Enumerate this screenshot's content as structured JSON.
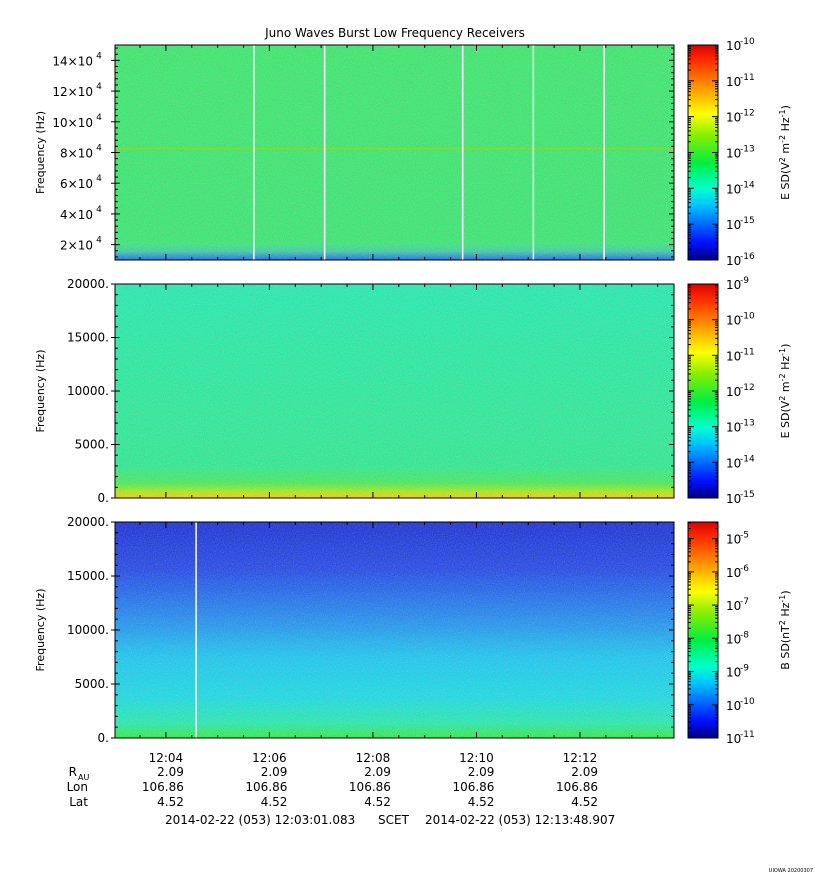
{
  "title": "Juno Waves Burst Low Frequency Receivers",
  "footer": {
    "start": "2014-02-22 (053) 12:03:01.083",
    "frame": "SCET",
    "end": "2014-02-22 (053) 12:13:48.907",
    "stamp": "UIOWA 20200307"
  },
  "ephemeris": {
    "labels": [
      {
        "main": "R",
        "sub": "AU"
      },
      {
        "main": "Lon",
        "sub": ""
      },
      {
        "main": "Lat",
        "sub": ""
      }
    ],
    "columns": [
      {
        "time": "12:04",
        "R": "2.09",
        "Lon": "106.86",
        "Lat": "4.52"
      },
      {
        "time": "12:06",
        "R": "2.09",
        "Lon": "106.86",
        "Lat": "4.52"
      },
      {
        "time": "12:08",
        "R": "2.09",
        "Lon": "106.86",
        "Lat": "4.52"
      },
      {
        "time": "12:10",
        "R": "2.09",
        "Lon": "106.86",
        "Lat": "4.52"
      },
      {
        "time": "12:12",
        "R": "2.09",
        "Lon": "106.86",
        "Lat": "4.52"
      }
    ]
  },
  "chart_data": [
    {
      "type": "heatmap",
      "title": "Juno Waves Burst Low Frequency Receivers",
      "ylabel": "Frequency (Hz)",
      "ylim": [
        10000,
        150000
      ],
      "yticks": [
        {
          "value": 20000,
          "mant": "2×10",
          "exp": "4"
        },
        {
          "value": 40000,
          "mant": "4×10",
          "exp": "4"
        },
        {
          "value": 60000,
          "mant": "6×10",
          "exp": "4"
        },
        {
          "value": 80000,
          "mant": "8×10",
          "exp": "4"
        },
        {
          "value": 100000,
          "mant": "10×10",
          "exp": "4"
        },
        {
          "value": 120000,
          "mant": "12×10",
          "exp": "4"
        },
        {
          "value": 140000,
          "mant": "14×10",
          "exp": "4"
        }
      ],
      "xlim": [
        "12:03:01",
        "12:13:49"
      ],
      "xticks": [
        "12:04",
        "12:06",
        "12:08",
        "12:10",
        "12:12"
      ],
      "colorbar": {
        "label_prefix": "E SD(V",
        "label_mid": " m",
        "label_mid2": " Hz",
        "label_suffix": ")",
        "label_sups": [
          "2",
          "-2",
          "-1"
        ],
        "log_min": -16,
        "log_max": -10,
        "ticks": [
          "10^-16",
          "10^-15",
          "10^-14",
          "10^-13",
          "10^-12",
          "10^-11",
          "10^-10"
        ]
      },
      "dominant_log_level": -13.5,
      "noise_line_frequency": 82500,
      "gap_times": [
        "12:05:42",
        "12:07:04",
        "12:09:44",
        "12:11:06",
        "12:12:28"
      ],
      "colors": {
        "background": "#33ee66",
        "low_band": "#1a66ee",
        "gap": "#ffffff"
      }
    },
    {
      "type": "heatmap",
      "ylabel": "Frequency (Hz)",
      "ylim": [
        0,
        20000
      ],
      "yticks": [
        "0.",
        "5000.",
        "10000.",
        "15000.",
        "20000."
      ],
      "ytick_values": [
        0,
        5000,
        10000,
        15000,
        20000
      ],
      "xlim": [
        "12:03:01",
        "12:13:49"
      ],
      "xticks": [
        "12:04",
        "12:06",
        "12:08",
        "12:10",
        "12:12"
      ],
      "colorbar": {
        "label_prefix": "E SD(V",
        "label_mid": " m",
        "label_mid2": " Hz",
        "label_suffix": ")",
        "label_sups": [
          "2",
          "-2",
          "-1"
        ],
        "log_min": -15,
        "log_max": -9,
        "ticks": [
          "10^-15",
          "10^-14",
          "10^-13",
          "10^-12",
          "10^-11",
          "10^-10",
          "10^-9"
        ]
      },
      "dominant_log_level": -12.7,
      "low_band_hz": 500,
      "colors": {
        "background": "#22eeaa",
        "low_band": "#ffdd00"
      }
    },
    {
      "type": "heatmap",
      "ylabel": "Frequency (Hz)",
      "ylim": [
        0,
        20000
      ],
      "yticks": [
        "0.",
        "5000.",
        "10000.",
        "15000.",
        "20000."
      ],
      "ytick_values": [
        0,
        5000,
        10000,
        15000,
        20000
      ],
      "xlim": [
        "12:03:01",
        "12:13:49"
      ],
      "xticks": [
        "12:04",
        "12:06",
        "12:08",
        "12:10",
        "12:12"
      ],
      "colorbar": {
        "label_prefix": "B SD(nT",
        "label_mid": " Hz",
        "label_mid2": "",
        "label_suffix": ")",
        "label_sups": [
          "2",
          "-1"
        ],
        "log_min": -11,
        "log_max": -4.5,
        "ticks": [
          "10^-11",
          "10^-10",
          "10^-9",
          "10^-8",
          "10^-7",
          "10^-6",
          "10^-5"
        ]
      },
      "gradient": "blue at top to cyan near 4000 Hz, green at lowest frequencies",
      "gap_times": [
        "12:04:35"
      ],
      "colors": {
        "top": "#1433e6",
        "mid": "#13d4f0",
        "bottom": "#22ee55",
        "gap": "#ffffff"
      }
    }
  ]
}
